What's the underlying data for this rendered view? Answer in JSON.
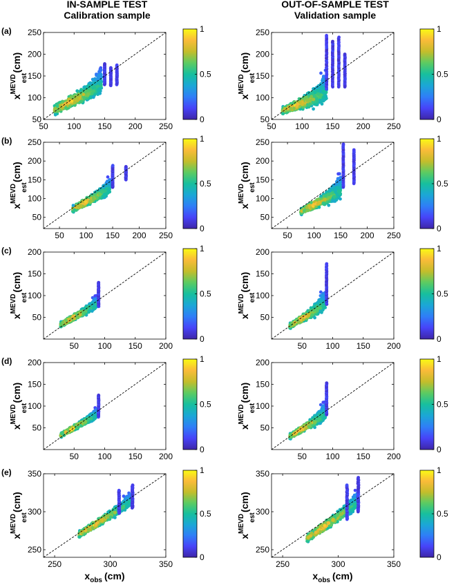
{
  "column_titles": {
    "left": {
      "line1": "IN-SAMPLE TEST",
      "line2": "Calibration sample"
    },
    "right": {
      "line1": "OUT-OF-SAMPLE TEST",
      "line2": "Validation sample"
    }
  },
  "colormap": [
    "#3e26a8",
    "#4743f8",
    "#2f7ef7",
    "#1ba7d6",
    "#17bf9e",
    "#5ccb62",
    "#c4bd2b",
    "#fabb39",
    "#f9fb15"
  ],
  "chart_data": [
    {
      "type": "scatter",
      "panel": "(a)",
      "test": "in-sample",
      "xlim": [
        50,
        250
      ],
      "ylim": [
        50,
        250
      ],
      "xticks": [
        50,
        100,
        150,
        200,
        250
      ],
      "yticks": [
        50,
        100,
        150,
        200,
        250
      ],
      "ylabel": "x_est^MEVD (cm)",
      "xlabel": "",
      "colorbar_ticks": [
        "0",
        "0.5",
        "1"
      ],
      "points": {
        "xmin": 68,
        "xmax": 145,
        "y0": 72,
        "y1": 127,
        "spread": 14,
        "fan": 1.2,
        "colored": true,
        "columns": [
          [
            150,
            130,
            178
          ],
          [
            160,
            128,
            170
          ],
          [
            170,
            130,
            175
          ]
        ]
      }
    },
    {
      "type": "scatter",
      "panel": "(a)",
      "test": "out-of-sample",
      "xlim": [
        50,
        250
      ],
      "ylim": [
        50,
        250
      ],
      "xticks": [
        50,
        100,
        150,
        200,
        250
      ],
      "yticks": [
        50,
        100,
        150,
        200,
        250
      ],
      "ylabel": "x_est^MEVD (cm)",
      "xlabel": "",
      "colorbar_ticks": [
        "0",
        "0.5",
        "1"
      ],
      "points": {
        "xmin": 68,
        "xmax": 140,
        "y0": 70,
        "y1": 110,
        "spread": 10,
        "fan": 3.0,
        "colored": true,
        "columns": [
          [
            140,
            120,
            243
          ],
          [
            150,
            125,
            232
          ],
          [
            160,
            125,
            242
          ],
          [
            170,
            125,
            200
          ]
        ]
      }
    },
    {
      "type": "scatter",
      "panel": "(b)",
      "test": "in-sample",
      "xlim": [
        20,
        250
      ],
      "ylim": [
        20,
        250
      ],
      "xticks": [
        50,
        100,
        150,
        200,
        250
      ],
      "yticks": [
        50,
        100,
        150,
        200,
        250
      ],
      "ylabel": "x_est^MEVD (cm)",
      "xlabel": "",
      "colorbar_ticks": [
        "0",
        "0.5",
        "1"
      ],
      "points": {
        "xmin": 75,
        "xmax": 145,
        "y0": 72,
        "y1": 125,
        "spread": 10,
        "fan": 1.5,
        "colored": true,
        "columns": [
          [
            150,
            130,
            188
          ],
          [
            175,
            150,
            185
          ]
        ]
      }
    },
    {
      "type": "scatter",
      "panel": "(b)",
      "test": "out-of-sample",
      "xlim": [
        20,
        250
      ],
      "ylim": [
        20,
        250
      ],
      "xticks": [
        50,
        100,
        150,
        200,
        250
      ],
      "yticks": [
        50,
        100,
        150,
        200,
        250
      ],
      "ylabel": "x_est^MEVD (cm)",
      "xlabel": "",
      "colorbar_ticks": [
        "0",
        "0.5",
        "1"
      ],
      "points": {
        "xmin": 75,
        "xmax": 150,
        "y0": 65,
        "y1": 120,
        "spread": 10,
        "fan": 2.5,
        "colored": true,
        "columns": [
          [
            155,
            130,
            245
          ],
          [
            175,
            140,
            232
          ]
        ]
      }
    },
    {
      "type": "scatter",
      "panel": "(c)",
      "test": "in-sample",
      "xlim": [
        0,
        200
      ],
      "ylim": [
        0,
        200
      ],
      "xticks": [
        50,
        100,
        150,
        200
      ],
      "yticks": [
        50,
        100,
        150,
        200
      ],
      "ylabel": "x_est^MEVD (cm)",
      "xlabel": "",
      "colorbar_ticks": [
        "0",
        "0.5",
        "1"
      ],
      "points": {
        "xmin": 28,
        "xmax": 88,
        "y0": 33,
        "y1": 80,
        "spread": 7,
        "fan": 1.2,
        "colored": true,
        "columns": [
          [
            90,
            75,
            130
          ]
        ]
      }
    },
    {
      "type": "scatter",
      "panel": "(c)",
      "test": "out-of-sample",
      "xlim": [
        0,
        200
      ],
      "ylim": [
        0,
        200
      ],
      "xticks": [
        50,
        100,
        150,
        200
      ],
      "yticks": [
        50,
        100,
        150,
        200
      ],
      "ylabel": "x_est^MEVD (cm)",
      "xlabel": "",
      "colorbar_ticks": [
        "0",
        "0.5",
        "1"
      ],
      "points": {
        "xmin": 30,
        "xmax": 88,
        "y0": 30,
        "y1": 80,
        "spread": 7,
        "fan": 2.8,
        "colored": true,
        "columns": [
          [
            90,
            80,
            173
          ]
        ]
      }
    },
    {
      "type": "scatter",
      "panel": "(d)",
      "test": "in-sample",
      "xlim": [
        0,
        200
      ],
      "ylim": [
        0,
        200
      ],
      "xticks": [
        50,
        100,
        150,
        200
      ],
      "yticks": [
        50,
        100,
        150,
        200
      ],
      "ylabel": "x_est^MEVD (cm)",
      "xlabel": "",
      "colorbar_ticks": [
        "0",
        "0.5",
        "1"
      ],
      "points": {
        "xmin": 28,
        "xmax": 88,
        "y0": 33,
        "y1": 80,
        "spread": 6,
        "fan": 1.2,
        "colored": true,
        "columns": [
          [
            90,
            75,
            125
          ]
        ]
      }
    },
    {
      "type": "scatter",
      "panel": "(d)",
      "test": "out-of-sample",
      "xlim": [
        0,
        200
      ],
      "ylim": [
        0,
        200
      ],
      "xticks": [
        50,
        100,
        150,
        200
      ],
      "yticks": [
        50,
        100,
        150,
        200
      ],
      "ylabel": "x_est^MEVD (cm)",
      "xlabel": "",
      "colorbar_ticks": [
        "0",
        "0.5",
        "1"
      ],
      "points": {
        "xmin": 30,
        "xmax": 88,
        "y0": 30,
        "y1": 80,
        "spread": 7,
        "fan": 2.2,
        "colored": true,
        "columns": [
          [
            90,
            80,
            153
          ]
        ]
      }
    },
    {
      "type": "scatter",
      "panel": "(e)",
      "test": "in-sample",
      "xlim": [
        240,
        350
      ],
      "ylim": [
        240,
        350
      ],
      "xticks": [
        250,
        300,
        350
      ],
      "yticks": [
        250,
        300,
        350
      ],
      "ylabel": "x_est^MEVD (cm)",
      "xlabel": "x_obs (cm)",
      "colorbar_ticks": [
        "0",
        "0.5",
        "1"
      ],
      "points": {
        "xmin": 272,
        "xmax": 318,
        "y0": 270,
        "y1": 312,
        "spread": 5,
        "fan": 1.0,
        "colored": true,
        "columns": [
          [
            308,
            298,
            328
          ],
          [
            320,
            305,
            335
          ]
        ]
      }
    },
    {
      "type": "scatter",
      "panel": "(e)",
      "test": "out-of-sample",
      "xlim": [
        240,
        350
      ],
      "ylim": [
        240,
        350
      ],
      "xticks": [
        250,
        300,
        350
      ],
      "yticks": [
        250,
        300,
        350
      ],
      "ylabel": "x_est^MEVD (cm)",
      "xlabel": "x_obs (cm)",
      "colorbar_ticks": [
        "0",
        "0.5",
        "1"
      ],
      "points": {
        "xmin": 272,
        "xmax": 318,
        "y0": 265,
        "y1": 312,
        "spread": 6,
        "fan": 1.2,
        "colored": true,
        "columns": [
          [
            308,
            290,
            335
          ],
          [
            318,
            300,
            345
          ]
        ]
      }
    }
  ]
}
